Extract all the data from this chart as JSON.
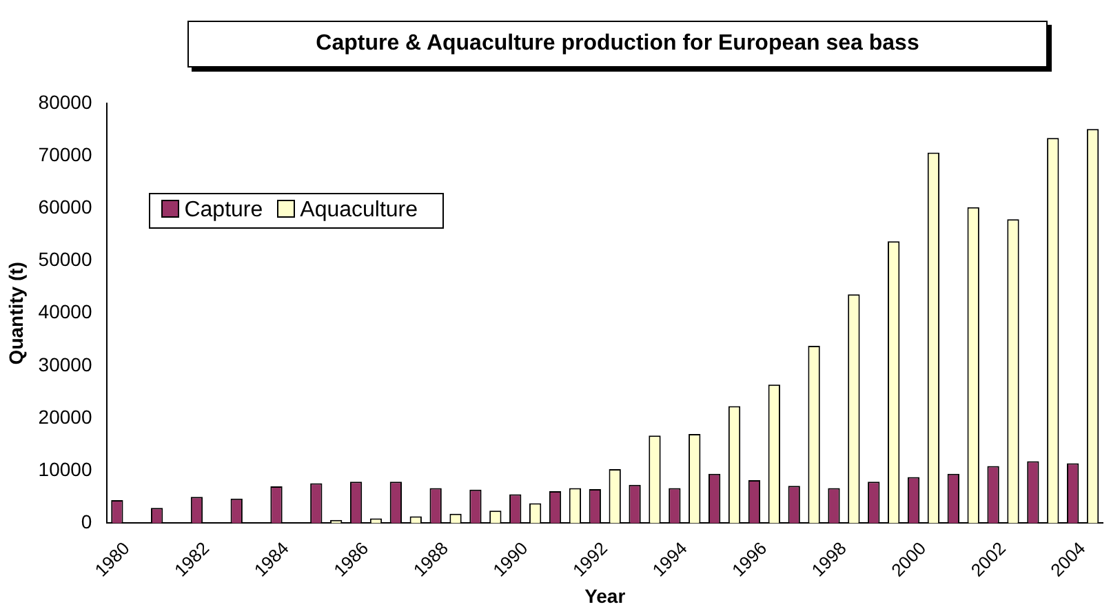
{
  "chart_data": {
    "type": "bar",
    "title": "Capture & Aquaculture production for European sea bass",
    "xlabel": "Year",
    "ylabel": "Quantity (t)",
    "categories": [
      "1980",
      null,
      "1982",
      null,
      "1984",
      null,
      "1986",
      null,
      "1988",
      null,
      "1990",
      null,
      "1992",
      null,
      "1994",
      null,
      "1996",
      null,
      "1998",
      null,
      "2000",
      null,
      "2002",
      null,
      "2004"
    ],
    "series": [
      {
        "name": "Capture",
        "color": "#993366",
        "values": [
          4400,
          2900,
          5000,
          4700,
          7000,
          7600,
          7900,
          7900,
          6700,
          6400,
          5500,
          6100,
          6500,
          7300,
          6700,
          9400,
          8200,
          7100,
          6700,
          7900,
          8800,
          9400,
          10900,
          11800,
          11400
        ]
      },
      {
        "name": "Aquaculture",
        "color": "#ffffcc",
        "values": [
          0,
          null,
          null,
          null,
          null,
          600,
          900,
          1300,
          1800,
          2400,
          3800,
          6700,
          10300,
          16700,
          17000,
          22300,
          26400,
          33800,
          43600,
          53700,
          70600,
          60200,
          57900,
          73400,
          75100
        ]
      }
    ],
    "ylim": [
      0,
      80000
    ],
    "yticks": [
      0,
      10000,
      20000,
      30000,
      40000,
      50000,
      60000,
      70000,
      80000
    ],
    "grid": false,
    "legend": "top left"
  }
}
